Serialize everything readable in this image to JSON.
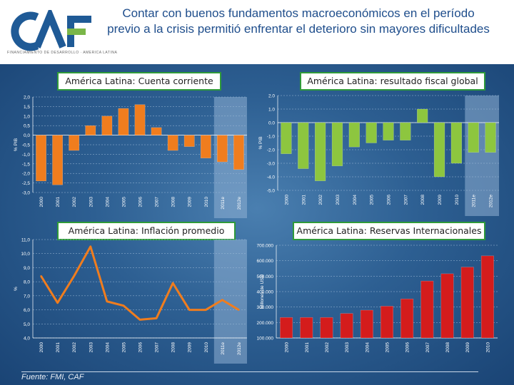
{
  "header": {
    "title": "Contar con buenos fundamentos macroeconómicos en el período previo a la crisis permitió enfrentar el deterioro sin mayores dificultades",
    "logo_text": "CAF",
    "logo_subtext": "FINANCIAMIENTO DE DESARROLLO · AMERICA LATINA"
  },
  "source": "Fuente: FMI, CAF",
  "colors": {
    "orange": "#f07d1e",
    "green": "#8dc63f",
    "red": "#d41c1c",
    "logo_blue": "#1f5a96",
    "logo_green": "#7ab648"
  },
  "chart_data": [
    {
      "type": "bar",
      "title": "América Latina: Cuenta corriente",
      "ylabel": "% PIB",
      "categories": [
        "2000",
        "2001",
        "2002",
        "2003",
        "2004",
        "2005",
        "2006",
        "2007",
        "2008",
        "2009",
        "2010",
        "2011e",
        "2012e"
      ],
      "values": [
        -2.4,
        -2.6,
        -0.8,
        0.5,
        1.0,
        1.4,
        1.6,
        0.4,
        -0.8,
        -0.6,
        -1.2,
        -1.4,
        -1.8
      ],
      "ylim": [
        -3.0,
        2.0
      ],
      "yticks": [
        "2,0",
        "1,5",
        "1,0",
        "0,5",
        "0,0",
        "-0,5",
        "-1,0",
        "-1,5",
        "-2,0",
        "-2,5",
        "-3,0"
      ],
      "color": "#f07d1e",
      "projection": [
        "2011e",
        "2012e"
      ]
    },
    {
      "type": "bar",
      "title": "América Latina: resultado fiscal global",
      "ylabel": "% PIB",
      "categories": [
        "2000",
        "2001",
        "2002",
        "2003",
        "2004",
        "2005",
        "2006",
        "2007",
        "2008",
        "2009",
        "2010",
        "2011e",
        "2012e"
      ],
      "values": [
        -2.3,
        -3.4,
        -4.3,
        -3.2,
        -1.8,
        -1.5,
        -1.3,
        -1.3,
        1.0,
        -4.0,
        -3.0,
        -2.2,
        -2.2
      ],
      "ylim": [
        -5.0,
        2.0
      ],
      "yticks": [
        "2.0",
        "1.0",
        "0.0",
        "-1.0",
        "-2.0",
        "-3.0",
        "-4.0",
        "-5.0"
      ],
      "color": "#8dc63f",
      "projection": [
        "2011e",
        "2012e"
      ]
    },
    {
      "type": "line",
      "title": "América Latina: Inflación promedio",
      "ylabel": "%",
      "categories": [
        "2000",
        "2001",
        "2002",
        "2003",
        "2004",
        "2005",
        "2006",
        "2007",
        "2008",
        "2009",
        "2010",
        "2011e",
        "2012e"
      ],
      "values": [
        8.4,
        6.5,
        8.4,
        10.5,
        6.6,
        6.3,
        5.3,
        5.4,
        7.9,
        6.0,
        6.0,
        6.7,
        6.0
      ],
      "ylim": [
        4.0,
        11.0
      ],
      "yticks": [
        "11,0",
        "10,0",
        "9,0",
        "8,0",
        "7,0",
        "6,0",
        "5,0",
        "4,0"
      ],
      "color": "#f07d1e",
      "projection": [
        "2011e",
        "2012e"
      ]
    },
    {
      "type": "bar",
      "title": "América Latina: Reservas Internacionales",
      "ylabel": "Millones de USD",
      "categories": [
        "2000",
        "2001",
        "2002",
        "2003",
        "2004",
        "2005",
        "2006",
        "2007",
        "2008",
        "2009",
        "2010"
      ],
      "values": [
        155000,
        155000,
        155000,
        185000,
        210000,
        240000,
        295000,
        430000,
        485000,
        535000,
        620000
      ],
      "ylim": [
        0,
        700000
      ],
      "yticks": [
        "700.000",
        "600.000",
        "500.000",
        "400.000",
        "300.000",
        "200.000",
        "100.000"
      ],
      "color": "#d41c1c"
    }
  ]
}
